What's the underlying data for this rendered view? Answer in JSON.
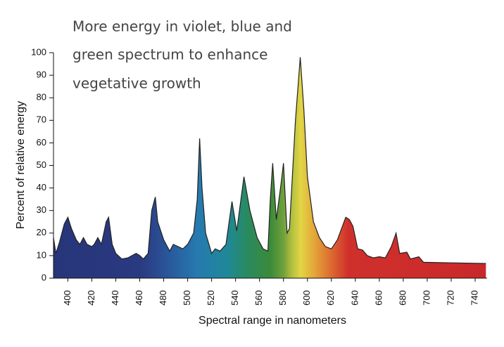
{
  "chart_data": {
    "type": "area",
    "annotation": [
      "More energy in violet, blue and",
      "green spectrum to enhance",
      "vegetative growth"
    ],
    "xlabel": "Spectral range in nanometers",
    "ylabel": "Percent of relative energy",
    "x": [
      388,
      390,
      393,
      397,
      400,
      403,
      407,
      410,
      413,
      416,
      420,
      422,
      425,
      428,
      432,
      434,
      437,
      440,
      445,
      450,
      457,
      460,
      463,
      467,
      470,
      473,
      475,
      480,
      485,
      488,
      492,
      496,
      500,
      505,
      508,
      510,
      512,
      515,
      520,
      523,
      527,
      532,
      537,
      541,
      547,
      552,
      558,
      563,
      567,
      569,
      571,
      574,
      578,
      580,
      583,
      585,
      590,
      594,
      597,
      600,
      605,
      610,
      615,
      620,
      625,
      632,
      635,
      638,
      642,
      646,
      650,
      655,
      660,
      665,
      670,
      674,
      677,
      683,
      686,
      693,
      697,
      700,
      749
    ],
    "values": [
      18,
      11,
      16,
      24,
      27,
      22,
      17,
      15,
      18,
      15,
      14,
      15,
      18,
      15,
      25,
      27,
      15,
      11,
      8.5,
      9,
      11,
      10,
      8.5,
      11,
      30,
      36,
      25,
      17,
      12,
      15,
      14,
      13,
      15,
      20,
      35,
      62,
      40,
      20,
      11,
      13,
      12,
      15,
      34,
      21,
      45,
      30,
      18,
      13,
      12,
      35,
      51,
      26,
      42,
      51,
      20,
      22,
      70,
      98,
      75,
      45,
      25,
      18,
      14,
      13,
      17,
      27,
      26,
      23,
      13,
      12.5,
      10,
      9,
      9.5,
      9,
      14,
      20,
      11,
      11.5,
      8.5,
      9.5,
      7,
      7,
      6.5
    ],
    "xlim": [
      388,
      750
    ],
    "ylim": [
      0,
      100
    ],
    "xticks": [
      400,
      420,
      440,
      460,
      480,
      500,
      520,
      540,
      560,
      580,
      600,
      620,
      640,
      660,
      680,
      700,
      720,
      740
    ],
    "yticks": [
      0,
      10,
      20,
      30,
      40,
      50,
      60,
      70,
      80,
      90,
      100
    ],
    "line_color": "#222222"
  }
}
